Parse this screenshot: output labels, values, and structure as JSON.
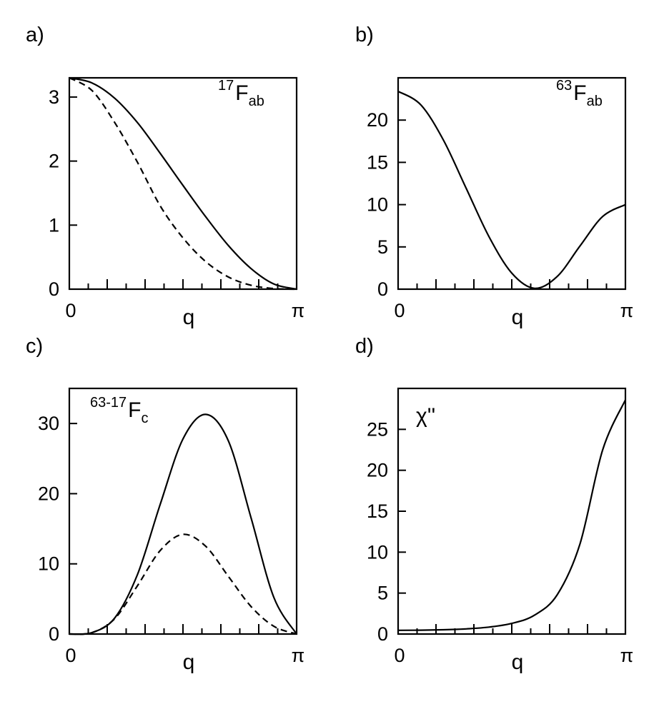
{
  "chart_data": [
    {
      "panel_label": "a)",
      "type": "line",
      "annotation": {
        "prefix": "17",
        "main": "F",
        "sub": "ab"
      },
      "xlabel": "q",
      "x_ticklabels": [
        "0",
        "π"
      ],
      "xlim": [
        0,
        3.1416
      ],
      "ylim": [
        0,
        3.3
      ],
      "yticks": [
        0,
        1,
        2,
        3
      ],
      "series": [
        {
          "style": "solid",
          "x": [
            0,
            0.314,
            0.628,
            0.942,
            1.257,
            1.571,
            1.885,
            2.199,
            2.513,
            2.827,
            3.142
          ],
          "y": [
            3.3,
            3.22,
            2.98,
            2.6,
            2.12,
            1.62,
            1.13,
            0.68,
            0.32,
            0.08,
            0.0
          ]
        },
        {
          "style": "dashed",
          "x": [
            0,
            0.314,
            0.628,
            0.942,
            1.257,
            1.571,
            1.885,
            2.199,
            2.513,
            2.827,
            3.142
          ],
          "y": [
            3.3,
            3.1,
            2.6,
            1.98,
            1.3,
            0.8,
            0.43,
            0.19,
            0.06,
            0.01,
            0.0
          ]
        }
      ]
    },
    {
      "panel_label": "b)",
      "type": "line",
      "annotation": {
        "prefix": "63",
        "main": "F",
        "sub": "ab"
      },
      "xlabel": "q",
      "x_ticklabels": [
        "0",
        "π"
      ],
      "xlim": [
        0,
        3.1416
      ],
      "ylim": [
        0,
        25
      ],
      "yticks": [
        0,
        5,
        10,
        15,
        20
      ],
      "series": [
        {
          "style": "solid",
          "x": [
            0,
            0.314,
            0.628,
            0.942,
            1.257,
            1.571,
            1.885,
            2.199,
            2.513,
            2.827,
            3.142
          ],
          "y": [
            23.4,
            21.8,
            17.6,
            11.9,
            6.2,
            1.9,
            0.1,
            1.5,
            5.1,
            8.6,
            10.0
          ]
        }
      ]
    },
    {
      "panel_label": "c)",
      "type": "line",
      "annotation": {
        "prefix": "63-17",
        "main": "F",
        "sub": "c"
      },
      "xlabel": "q",
      "x_ticklabels": [
        "0",
        "π"
      ],
      "xlim": [
        0,
        3.1416
      ],
      "ylim": [
        0,
        35
      ],
      "yticks": [
        0,
        10,
        20,
        30
      ],
      "series": [
        {
          "style": "solid",
          "x": [
            0,
            0.314,
            0.628,
            0.942,
            1.257,
            1.571,
            1.885,
            2.199,
            2.513,
            2.827,
            3.142
          ],
          "y": [
            0.0,
            0.2,
            2.3,
            8.5,
            18.5,
            27.8,
            31.3,
            27.5,
            16.5,
            5.2,
            0.0
          ]
        },
        {
          "style": "dashed",
          "x": [
            0,
            0.314,
            0.628,
            0.942,
            1.257,
            1.571,
            1.885,
            2.199,
            2.513,
            2.827,
            3.142
          ],
          "y": [
            0.0,
            0.2,
            2.2,
            6.9,
            11.9,
            14.2,
            12.5,
            8.2,
            3.9,
            1.1,
            0.0
          ]
        }
      ]
    },
    {
      "panel_label": "d)",
      "type": "line",
      "annotation": {
        "prefix": "",
        "main": "χ''",
        "sub": ""
      },
      "xlabel": "q",
      "x_ticklabels": [
        "0",
        "π"
      ],
      "xlim": [
        0,
        3.1416
      ],
      "ylim": [
        0,
        30
      ],
      "yticks": [
        0,
        5,
        10,
        15,
        20,
        25
      ],
      "series": [
        {
          "style": "solid",
          "x": [
            0,
            0.314,
            0.628,
            0.942,
            1.257,
            1.571,
            1.885,
            2.199,
            2.513,
            2.827,
            3.142
          ],
          "y": [
            0.45,
            0.47,
            0.52,
            0.63,
            0.85,
            1.3,
            2.3,
            4.8,
            11.0,
            22.5,
            28.6
          ]
        }
      ]
    }
  ]
}
